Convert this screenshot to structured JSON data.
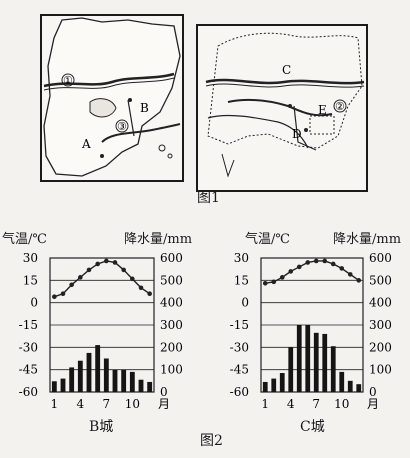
{
  "figure1": {
    "caption": "图1",
    "left_labels": [
      "①",
      "B",
      "A",
      "③"
    ],
    "right_labels": [
      "C",
      "D",
      "E",
      "②"
    ]
  },
  "figure2": {
    "caption": "图2"
  },
  "chart_data": [
    {
      "type": "bar",
      "title": "B城",
      "ylabel_left": "气温/℃",
      "ylabel_right": "降水量/mm",
      "x_tick_labels": [
        "1",
        "4",
        "7",
        "10",
        "月"
      ],
      "temp_ticks": [
        "30",
        "15",
        "0",
        "-15",
        "-30",
        "-45",
        "-60"
      ],
      "precip_ticks": [
        "600",
        "500",
        "400",
        "300",
        "200",
        "100",
        "0"
      ],
      "temp_ylim": [
        -60,
        30
      ],
      "precip_ylim": [
        0,
        600
      ],
      "months": [
        1,
        2,
        3,
        4,
        5,
        6,
        7,
        8,
        9,
        10,
        11,
        12
      ],
      "series": [
        {
          "name": "气温",
          "type": "line",
          "values": [
            4,
            6,
            12,
            17,
            22,
            26,
            28,
            27,
            22,
            16,
            10,
            6
          ]
        },
        {
          "name": "降水量",
          "type": "bar",
          "values": [
            48,
            60,
            110,
            140,
            175,
            210,
            150,
            100,
            100,
            90,
            55,
            45
          ]
        }
      ]
    },
    {
      "type": "bar",
      "title": "C城",
      "ylabel_left": "气温/℃",
      "ylabel_right": "降水量/mm",
      "x_tick_labels": [
        "1",
        "4",
        "7",
        "10",
        "月"
      ],
      "temp_ticks": [
        "30",
        "15",
        "0",
        "-15",
        "-30",
        "-45",
        "-60"
      ],
      "precip_ticks": [
        "600",
        "500",
        "400",
        "300",
        "200",
        "100",
        "0"
      ],
      "temp_ylim": [
        -60,
        30
      ],
      "precip_ylim": [
        0,
        600
      ],
      "months": [
        1,
        2,
        3,
        4,
        5,
        6,
        7,
        8,
        9,
        10,
        11,
        12
      ],
      "series": [
        {
          "name": "气温",
          "type": "line",
          "values": [
            13,
            14,
            17,
            21,
            24,
            27,
            28,
            28,
            26,
            23,
            19,
            15
          ]
        },
        {
          "name": "降水量",
          "type": "bar",
          "values": [
            45,
            60,
            85,
            200,
            300,
            300,
            265,
            260,
            205,
            90,
            50,
            35
          ]
        }
      ]
    }
  ]
}
